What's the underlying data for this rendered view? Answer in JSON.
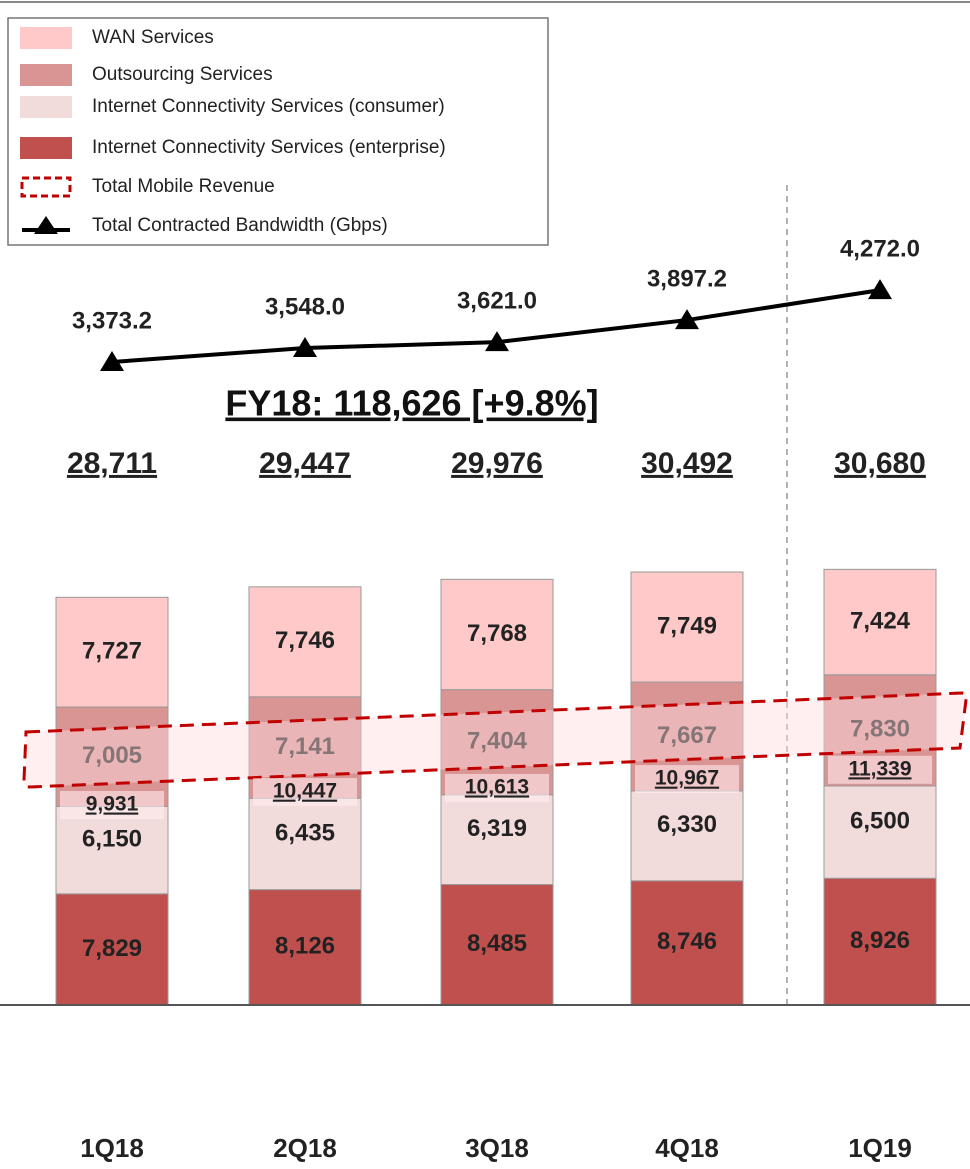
{
  "chart_data": {
    "type": "bar",
    "categories": [
      "1Q18",
      "2Q18",
      "3Q18",
      "4Q18",
      "1Q19"
    ],
    "series": [
      {
        "name": "WAN Services",
        "color": "#ffc9c9",
        "values": [
          7727,
          7746,
          7768,
          7749,
          7424
        ],
        "value_labels": [
          "7,727",
          "7,746",
          "7,768",
          "7,749",
          "7,424"
        ]
      },
      {
        "name": "Outsourcing Services",
        "color": "#d99594",
        "values": [
          7005,
          7141,
          7404,
          7667,
          7830
        ],
        "value_labels": [
          "7,005",
          "7,141",
          "7,404",
          "7,667",
          "7,830"
        ]
      },
      {
        "name": "Internet Connectivity Services (consumer)",
        "color": "#f2dcdb",
        "values": [
          6150,
          6435,
          6319,
          6330,
          6500
        ],
        "value_labels": [
          "6,150",
          "6,435",
          "6,319",
          "6,330",
          "6,500"
        ]
      },
      {
        "name": "Internet Connectivity Services (enterprise)",
        "color": "#c0504d",
        "values": [
          7829,
          8126,
          8485,
          8746,
          8926
        ],
        "value_labels": [
          "7,829",
          "8,126",
          "8,485",
          "8,746",
          "8,926"
        ]
      }
    ],
    "totals": {
      "values": [
        28711,
        29447,
        29976,
        30492,
        30680
      ],
      "value_labels": [
        "28,711",
        "29,447",
        "29,976",
        "30,492",
        "30,680"
      ]
    },
    "mobile": {
      "name": "Total Mobile Revenue",
      "color": "#c00000",
      "values": [
        9931,
        10447,
        10613,
        10967,
        11339
      ],
      "value_labels": [
        "9,931",
        "10,447",
        "10,613",
        "10,967",
        "11,339"
      ]
    },
    "line": {
      "type": "line",
      "name": "Total Contracted Bandwidth (Gbps)",
      "color": "#000000",
      "values": [
        3373.2,
        3548.0,
        3621.0,
        3897.2,
        4272.0
      ],
      "value_labels": [
        "3,373.2",
        "3,548.0",
        "3,621.0",
        "3,897.2",
        "4,272.0"
      ]
    },
    "annotation": "FY18: 118,626 [+9.8%]"
  }
}
